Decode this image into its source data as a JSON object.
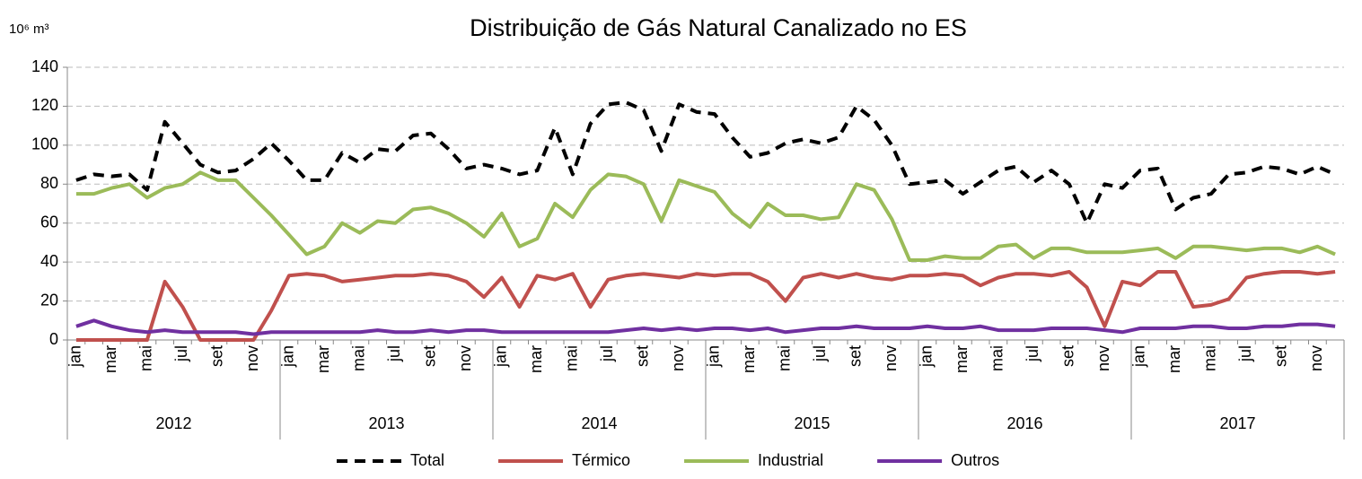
{
  "chart_data": {
    "type": "line",
    "title": "Distribuição de Gás Natural Canalizado no ES",
    "y_label": "10⁶ m³",
    "categories": [
      "jan",
      null,
      "mar",
      null,
      "mai",
      null,
      "jul",
      null,
      "set",
      null,
      "nov",
      null,
      "jan",
      null,
      "mar",
      null,
      "mai",
      null,
      "jul",
      null,
      "set",
      null,
      "nov",
      null,
      "jan",
      null,
      "mar",
      null,
      "mai",
      null,
      "jul",
      null,
      "set",
      null,
      "nov",
      null,
      "jan",
      null,
      "mar",
      null,
      "mai",
      null,
      "jul",
      null,
      "set",
      null,
      "nov",
      null,
      "jan",
      null,
      "mar",
      null,
      "mai",
      null,
      "jul",
      null,
      "set",
      null,
      "nov",
      null,
      "jan",
      null,
      "mar",
      null,
      "mai",
      null,
      "jul",
      null,
      "set",
      null,
      "nov",
      null
    ],
    "groups": [
      "2012",
      "2013",
      "2014",
      "2015",
      "2016",
      "2017"
    ],
    "ylim": [
      0,
      140
    ],
    "yticks": [
      0,
      20,
      40,
      60,
      80,
      100,
      120,
      140
    ],
    "grid": true,
    "legend": "bottom",
    "series": [
      {
        "name": "Total",
        "color": "#000000",
        "style": "dashed",
        "values": [
          82,
          85,
          84,
          85,
          77,
          112,
          101,
          90,
          86,
          87,
          93,
          101,
          92,
          82,
          82,
          96,
          91,
          98,
          97,
          105,
          106,
          98,
          88,
          90,
          88,
          85,
          87,
          109,
          85,
          111,
          121,
          122,
          118,
          97,
          121,
          117,
          116,
          104,
          94,
          96,
          101,
          103,
          101,
          104,
          120,
          113,
          100,
          80,
          81,
          82,
          75,
          81,
          87,
          89,
          81,
          87,
          80,
          60,
          80,
          78,
          87,
          88,
          67,
          73,
          75,
          85,
          86,
          89,
          88,
          85,
          89,
          85
        ]
      },
      {
        "name": "Térmico",
        "color": "#c0504d",
        "style": "solid",
        "values": [
          0,
          0,
          0,
          0,
          0,
          30,
          17,
          0,
          0,
          0,
          0,
          15,
          33,
          34,
          33,
          30,
          31,
          32,
          33,
          33,
          34,
          33,
          30,
          22,
          32,
          17,
          33,
          31,
          34,
          17,
          31,
          33,
          34,
          33,
          32,
          34,
          33,
          34,
          34,
          30,
          20,
          32,
          34,
          32,
          34,
          32,
          31,
          33,
          33,
          34,
          33,
          28,
          32,
          34,
          34,
          33,
          35,
          27,
          7,
          30,
          28,
          35,
          35,
          17,
          18,
          21,
          32,
          34,
          35,
          35,
          34,
          35
        ]
      },
      {
        "name": "Industrial",
        "color": "#9bbb59",
        "style": "solid",
        "values": [
          75,
          75,
          78,
          80,
          73,
          78,
          80,
          86,
          82,
          82,
          73,
          64,
          54,
          44,
          48,
          60,
          55,
          61,
          60,
          67,
          68,
          65,
          60,
          53,
          65,
          48,
          52,
          70,
          63,
          77,
          85,
          84,
          80,
          61,
          82,
          79,
          76,
          65,
          58,
          70,
          64,
          64,
          62,
          63,
          80,
          77,
          62,
          41,
          41,
          43,
          42,
          42,
          48,
          49,
          42,
          47,
          47,
          45,
          45,
          45,
          46,
          47,
          42,
          48,
          48,
          47,
          46,
          47,
          47,
          45,
          48,
          44
        ]
      },
      {
        "name": "Outros",
        "color": "#7030a0",
        "style": "solid",
        "values": [
          7,
          10,
          7,
          5,
          4,
          5,
          4,
          4,
          4,
          4,
          3,
          4,
          4,
          4,
          4,
          4,
          4,
          5,
          4,
          4,
          5,
          4,
          5,
          5,
          4,
          4,
          4,
          4,
          4,
          4,
          4,
          5,
          6,
          5,
          6,
          5,
          6,
          6,
          5,
          6,
          4,
          5,
          6,
          6,
          7,
          6,
          6,
          6,
          7,
          6,
          6,
          7,
          5,
          5,
          5,
          6,
          6,
          6,
          5,
          4,
          6,
          6,
          6,
          7,
          7,
          6,
          6,
          7,
          7,
          8,
          8,
          7
        ]
      }
    ]
  }
}
